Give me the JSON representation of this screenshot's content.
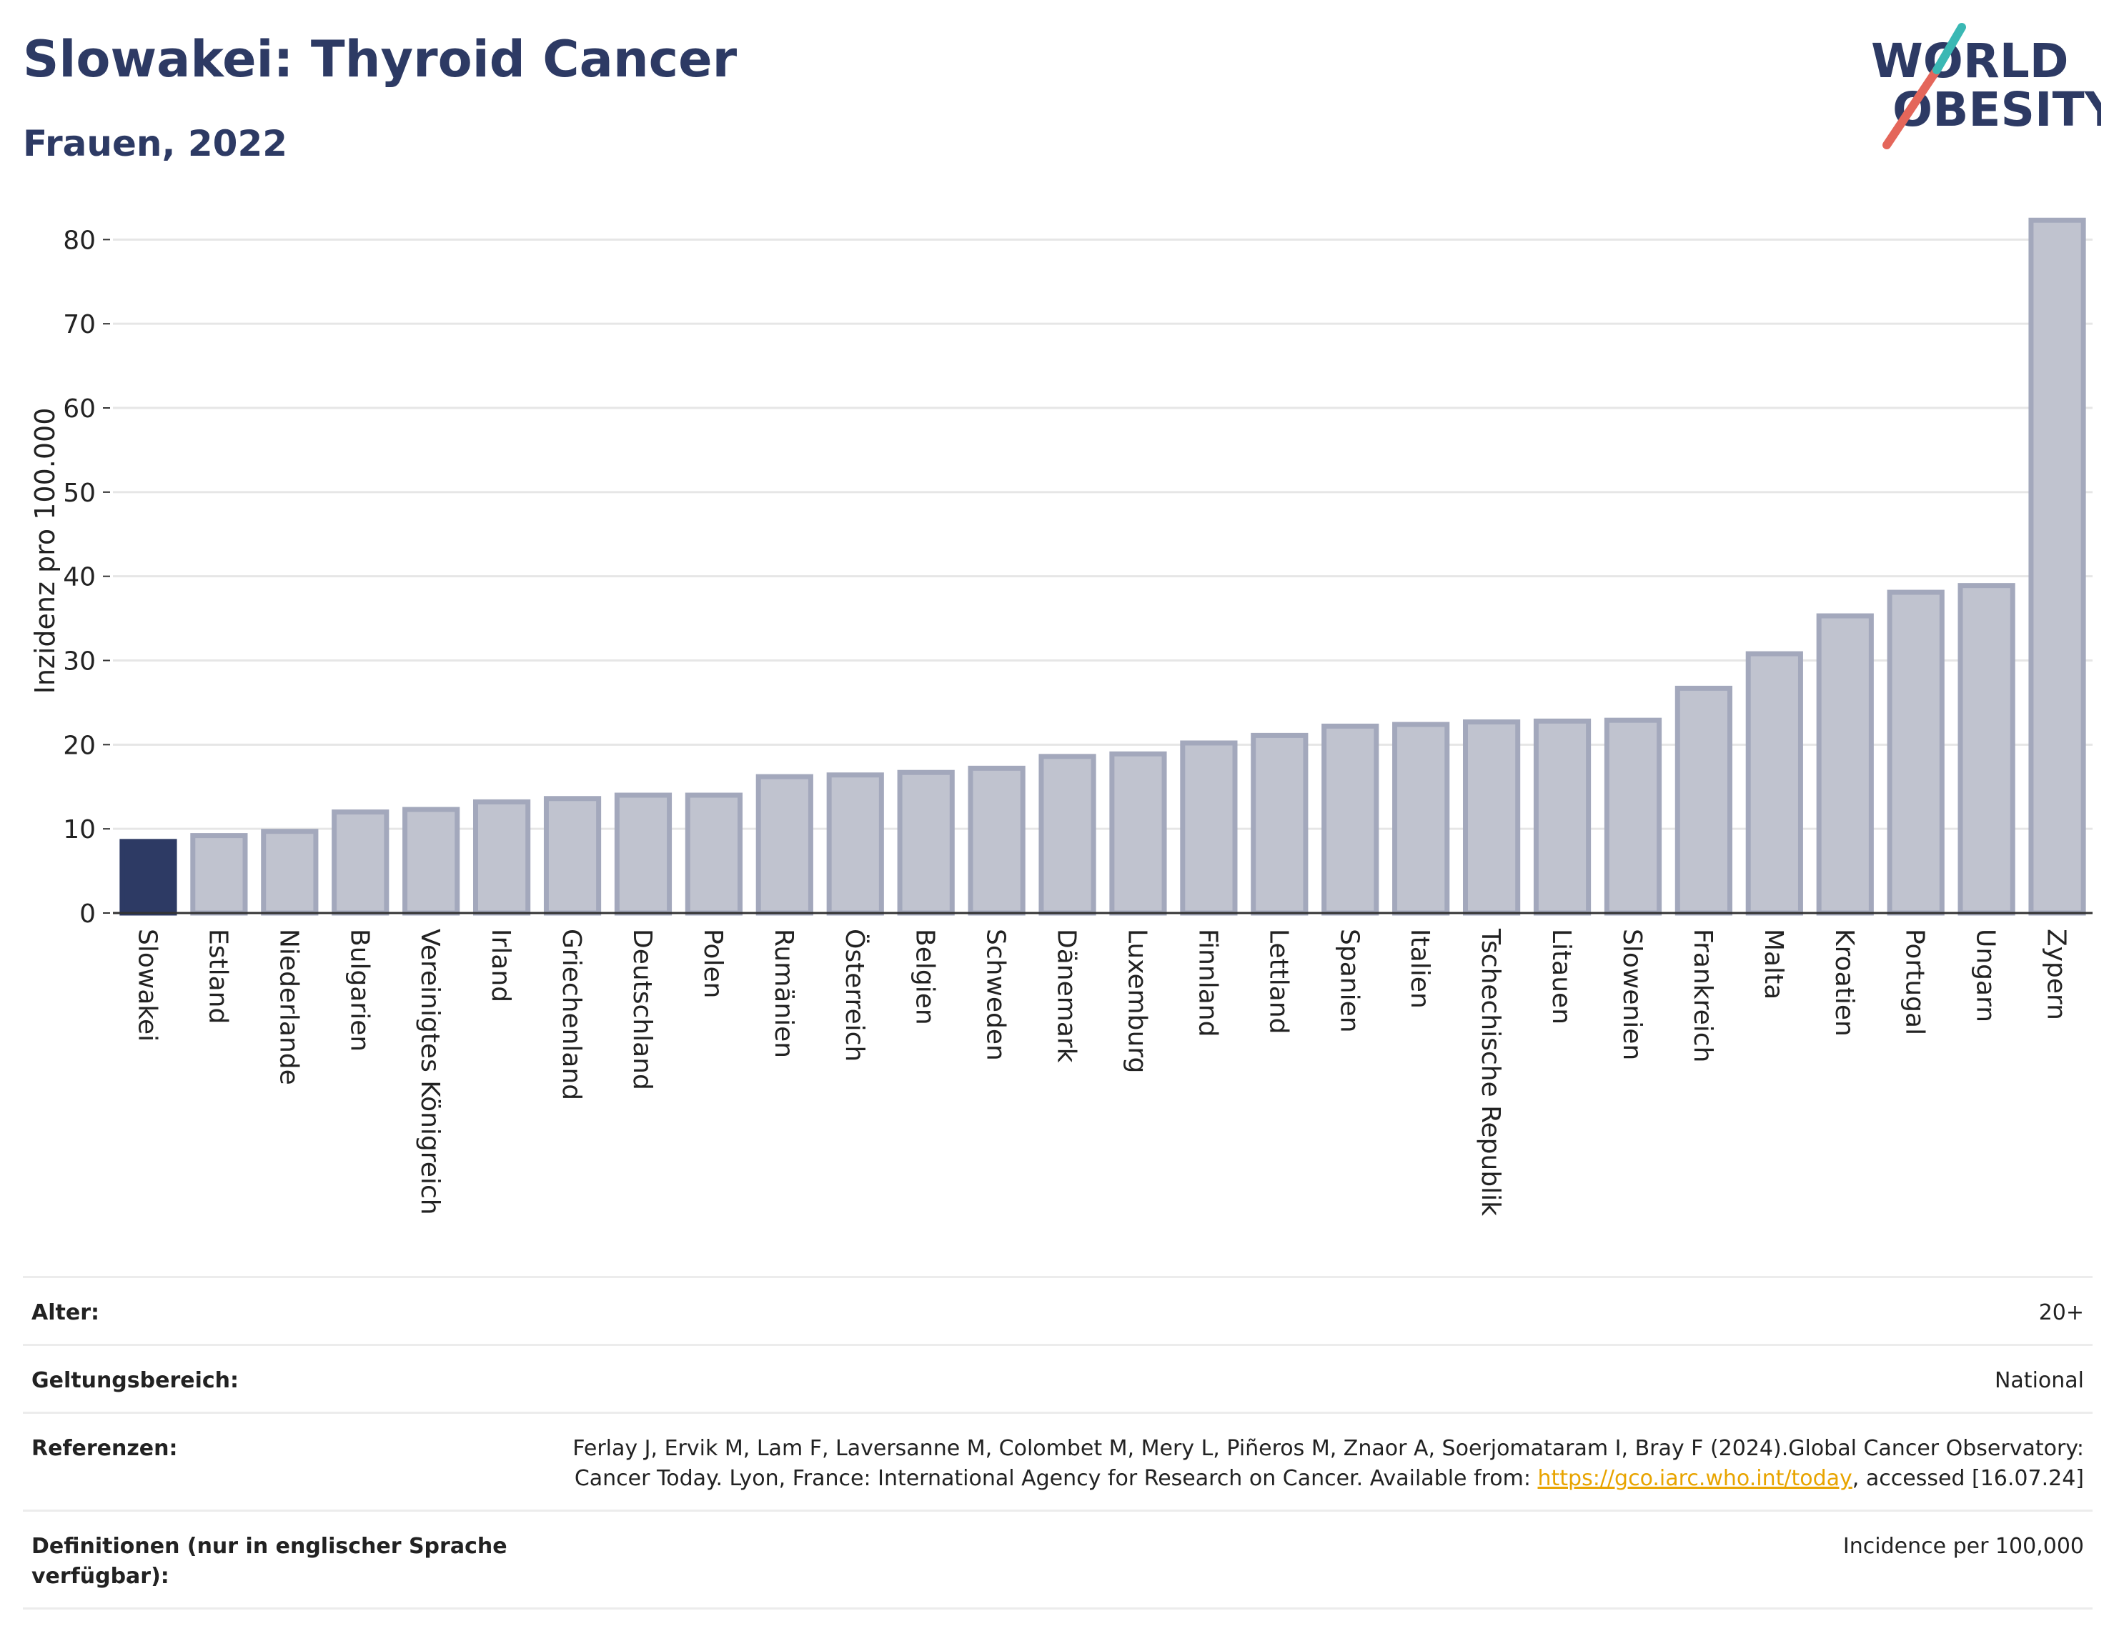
{
  "title": "Slowakei: Thyroid Cancer",
  "subtitle": "Frauen, 2022",
  "logo": {
    "line1": "WORLD",
    "line2": "OBESITY"
  },
  "colors": {
    "highlight": "#2d3a64",
    "bar": "#c0c3cf",
    "bar_border": "#a3a8bc",
    "title": "#2d3a64",
    "logo_red": "#e4665a",
    "logo_teal": "#3ab8b4"
  },
  "chart_data": {
    "type": "bar",
    "title": "Slowakei: Thyroid Cancer",
    "subtitle": "Frauen, 2022",
    "ylabel": "Inzidenz pro 100.000",
    "xlabel": "",
    "ylim": [
      0,
      83
    ],
    "yticks": [
      0,
      10,
      20,
      30,
      40,
      50,
      60,
      70,
      80
    ],
    "grid": true,
    "highlight": "Slowakei",
    "categories": [
      "Slowakei",
      "Estland",
      "Niederlande",
      "Bulgarien",
      "Vereinigtes Königreich",
      "Irland",
      "Griechenland",
      "Deutschland",
      "Polen",
      "Rumänien",
      "Österreich",
      "Belgien",
      "Schweden",
      "Dänemark",
      "Luxemburg",
      "Finnland",
      "Lettland",
      "Spanien",
      "Italien",
      "Tschechische Republik",
      "Litauen",
      "Slowenien",
      "Frankreich",
      "Malta",
      "Kroatien",
      "Portugal",
      "Ungarn",
      "Zypern"
    ],
    "values": [
      8.5,
      9.2,
      9.7,
      12.0,
      12.3,
      13.2,
      13.6,
      14.0,
      14.0,
      16.2,
      16.4,
      16.7,
      17.2,
      18.6,
      18.9,
      20.2,
      21.1,
      22.2,
      22.4,
      22.7,
      22.8,
      22.9,
      26.7,
      30.8,
      35.3,
      38.1,
      38.9,
      82.3
    ]
  },
  "meta": {
    "age_label": "Alter:",
    "age_value": "20+",
    "scope_label": "Geltungsbereich:",
    "scope_value": "National",
    "ref_label": "Referenzen:",
    "ref_text_1": "Ferlay J, Ervik M, Lam F, Laversanne M, Colombet M, Mery L, Piñeros M, Znaor A, Soerjomataram I, Bray F (2024).Global Cancer Observatory: Cancer Today. Lyon, France: International Agency for Research on Cancer. Available from: ",
    "ref_link": "https://gco.iarc.who.int/today",
    "ref_text_2": ", accessed [16.07.24]",
    "def_label": "Definitionen (nur in englischer Sprache verfügbar):",
    "def_value": "Incidence per 100,000"
  }
}
